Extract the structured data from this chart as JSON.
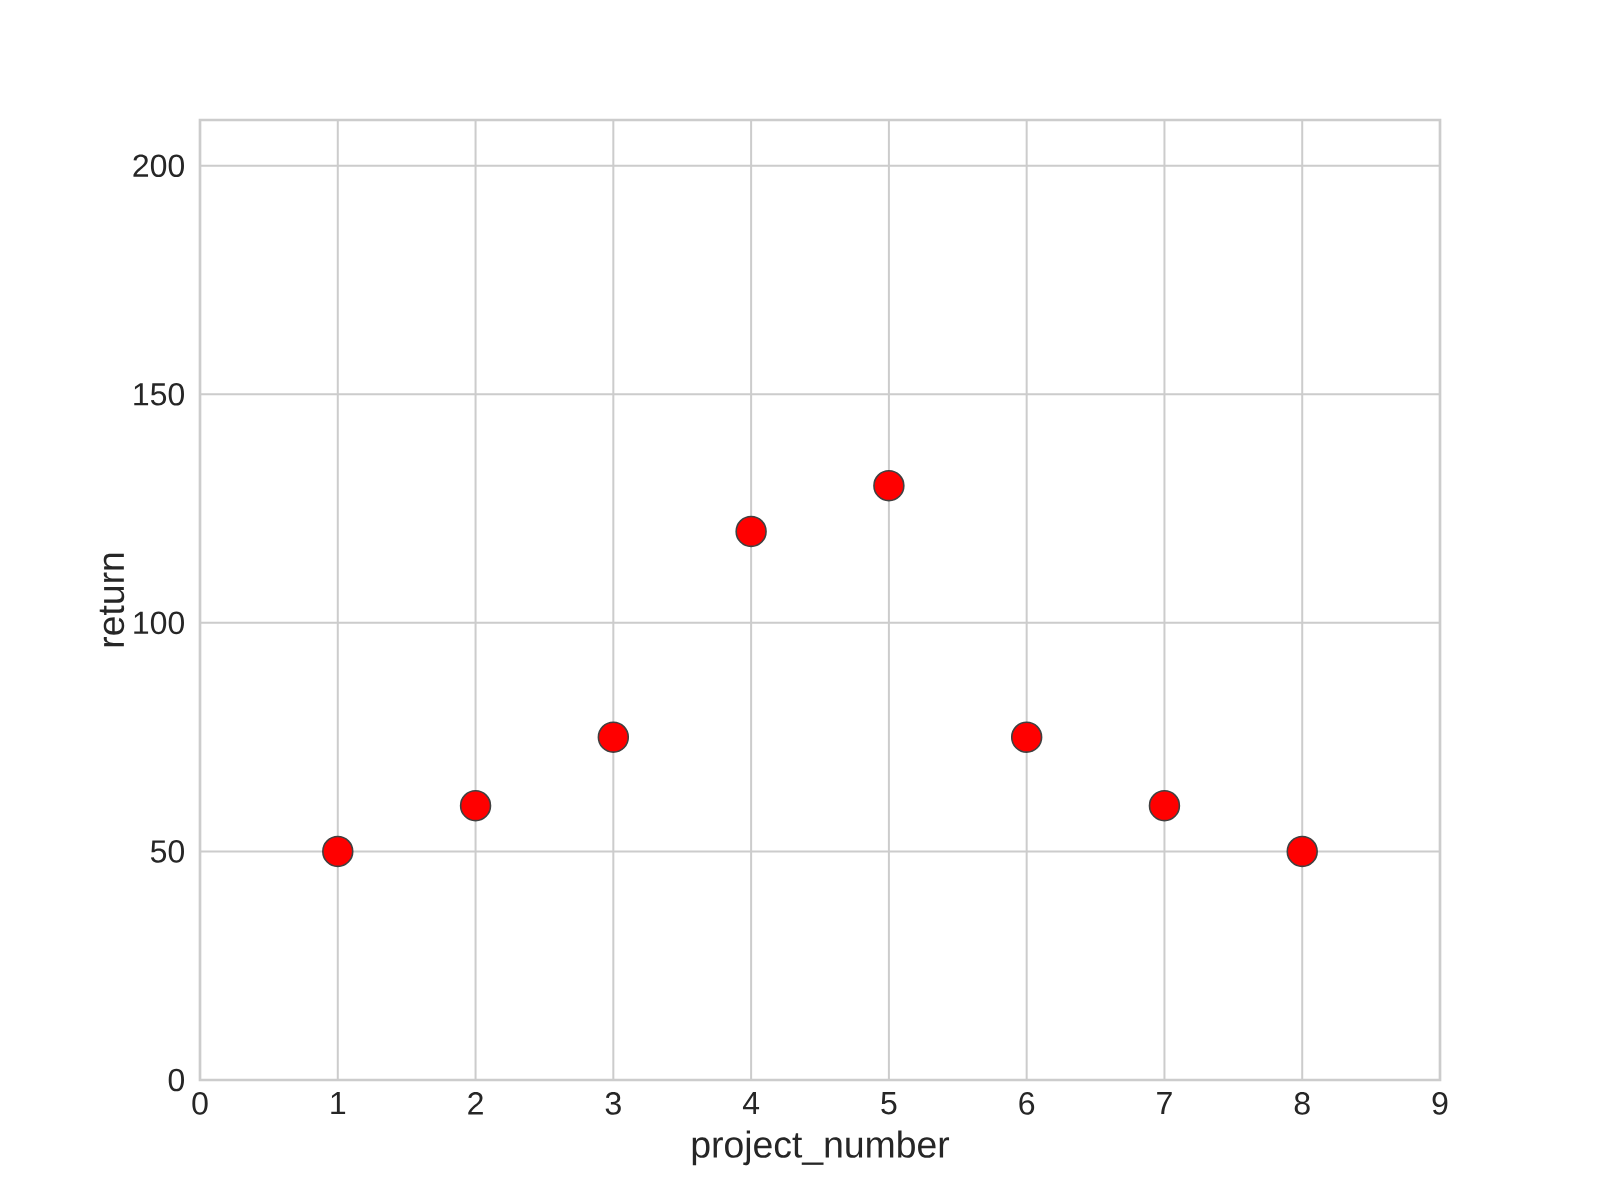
{
  "chart_data": {
    "type": "scatter",
    "xlabel": "project_number",
    "ylabel": "return",
    "x": [
      1,
      2,
      3,
      4,
      5,
      6,
      7,
      8
    ],
    "values": [
      50,
      60,
      75,
      120,
      130,
      75,
      60,
      50
    ],
    "color": "#ff0000",
    "xlim": [
      0,
      9
    ],
    "ylim": [
      0,
      210
    ],
    "xticks": [
      0,
      1,
      2,
      3,
      4,
      5,
      6,
      7,
      8,
      9
    ],
    "yticks": [
      0,
      50,
      100,
      150,
      200
    ],
    "grid": true,
    "marker": "circle"
  }
}
